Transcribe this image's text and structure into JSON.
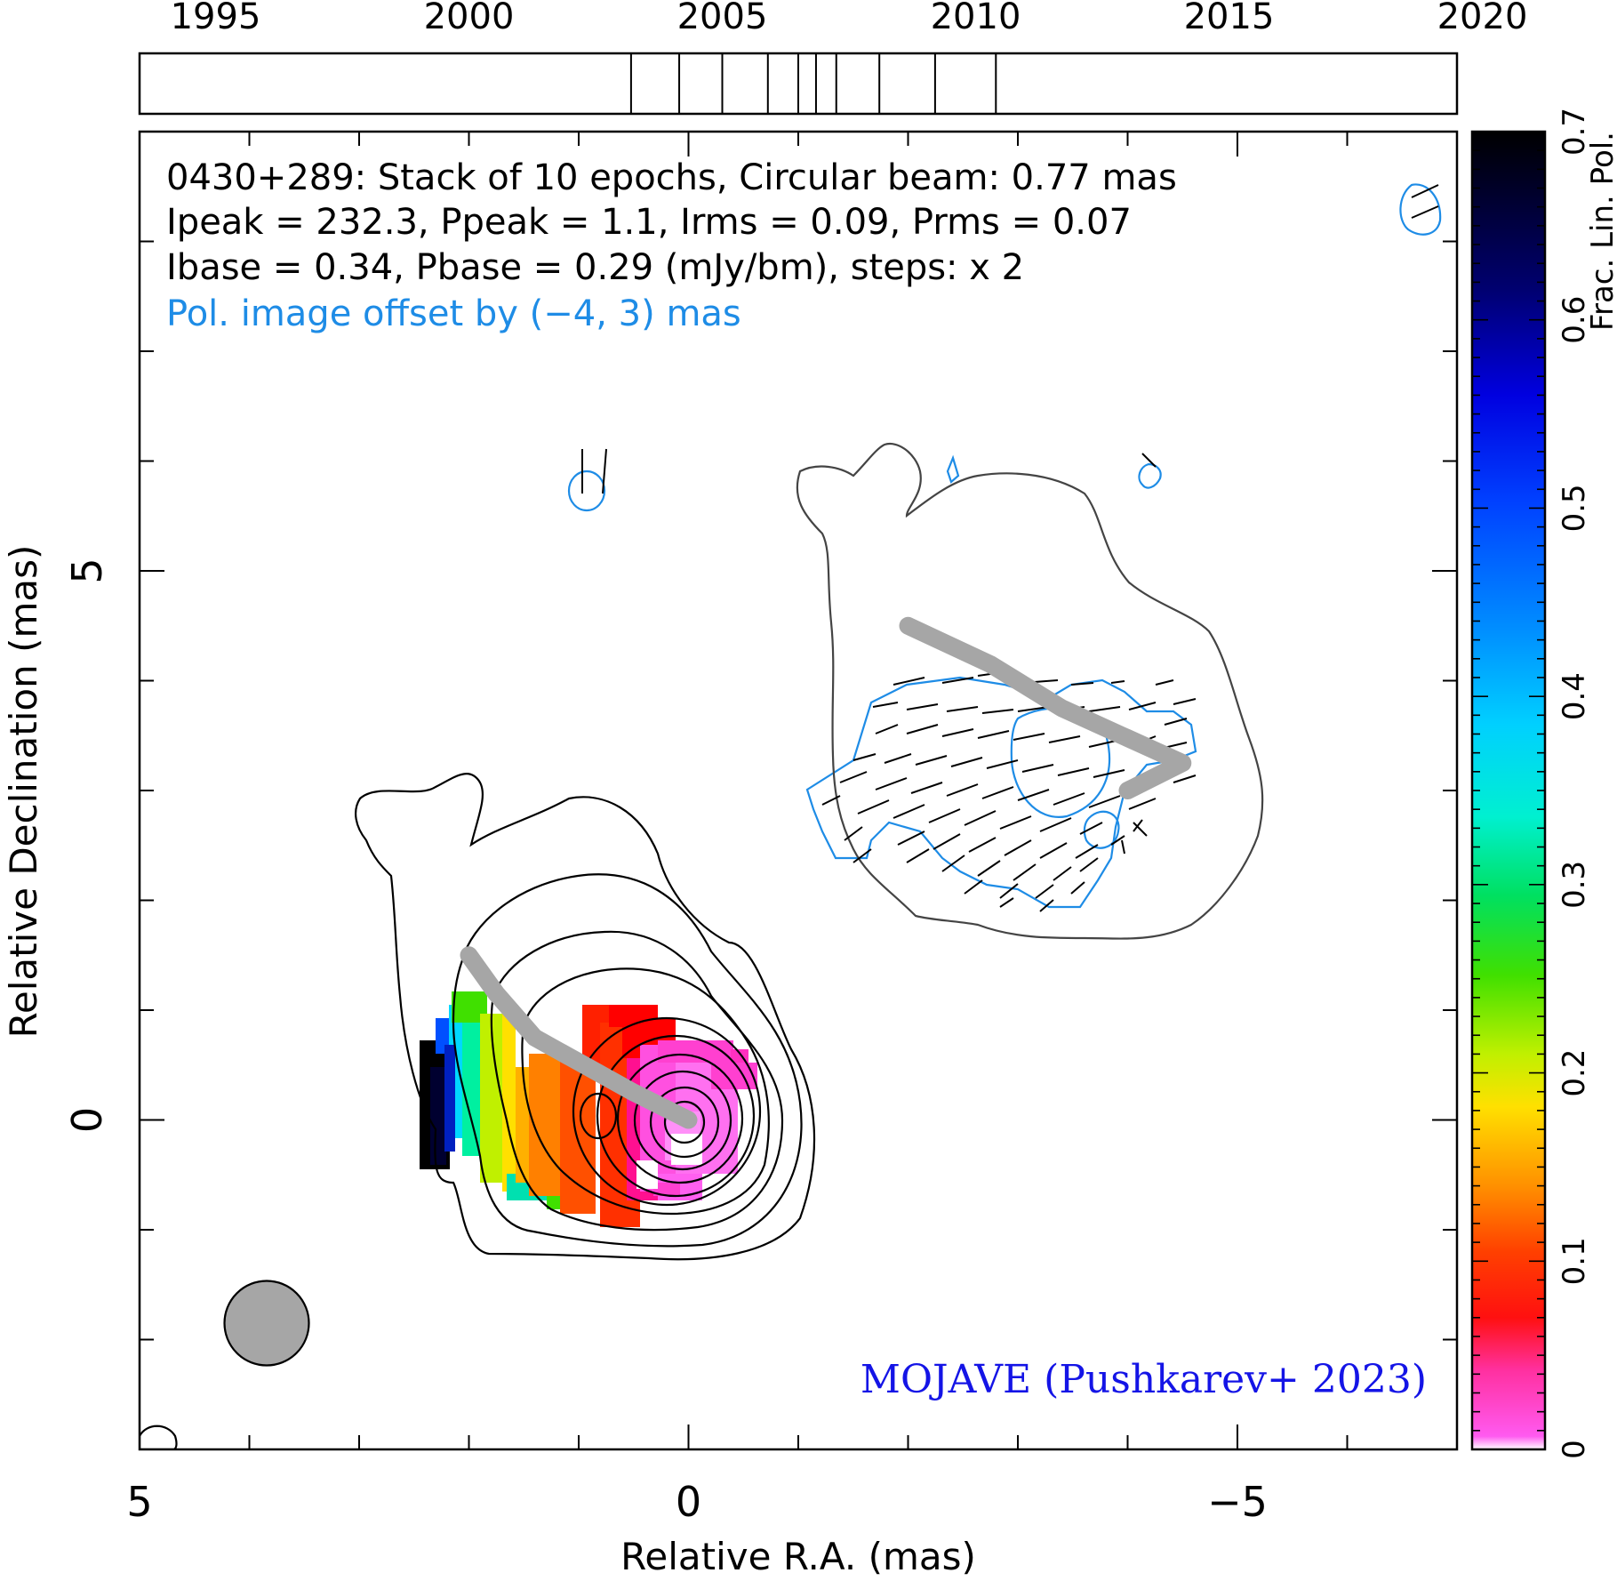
{
  "chart_data": {
    "type": "contour",
    "source": "0430+289",
    "header": {
      "line1": "0430+289: Stack of 10 epochs, Circular beam: 0.77 mas",
      "line2": "Ipeak = 232.3, Ppeak = 1.1, Irms = 0.09, Prms = 0.07",
      "line3": "Ibase = 0.34, Pbase = 0.29 (mJy/bm), steps: x 2",
      "line4": "Pol. image offset by (−4, 3) mas"
    },
    "credit": "MOJAVE (Pushkarev+ 2023)",
    "xlabel": "Relative R.A. (mas)",
    "ylabel": "Relative Declination (mas)",
    "xlim": [
      5,
      -7
    ],
    "ylim": [
      -3,
      9
    ],
    "x_ticks": [
      5,
      0,
      -5
    ],
    "x_tick_labels": [
      "5",
      "0",
      "−5"
    ],
    "y_ticks": [
      0,
      5
    ],
    "y_tick_labels": [
      "0",
      "5"
    ],
    "epoch_axis": {
      "range": [
        1993.5,
        2019.5
      ],
      "tick_labels": [
        "1995",
        "2000",
        "2005",
        "2010",
        "2015",
        "2020"
      ],
      "tick_values": [
        1995,
        2000,
        2005,
        2010,
        2015,
        2020
      ],
      "epochs": [
        2003.2,
        2004.15,
        2005.0,
        2005.9,
        2006.5,
        2006.85,
        2007.25,
        2008.1,
        2009.2,
        2010.4
      ]
    },
    "colorbar": {
      "label": "Frac. Lin. Pol.",
      "range": [
        0,
        0.7
      ],
      "tick_values": [
        0,
        0.1,
        0.2,
        0.3,
        0.4,
        0.5,
        0.6,
        0.7
      ],
      "tick_labels": [
        "0",
        "0.1",
        "0.2",
        "0.3",
        "0.4",
        "0.5",
        "0.6",
        "0.7"
      ]
    },
    "beam_diameter_mas": 0.77,
    "pol_offset_mas": [
      -4,
      3
    ],
    "ridgeline": [
      [
        2.0,
        1.5
      ],
      [
        1.75,
        1.15
      ],
      [
        1.4,
        0.75
      ],
      [
        0.95,
        0.5
      ],
      [
        0.5,
        0.25
      ],
      [
        0.0,
        0.0
      ]
    ],
    "ridgeline_pol": [
      [
        -2.0,
        4.5
      ],
      [
        -2.75,
        4.15
      ],
      [
        -3.4,
        3.75
      ],
      [
        -3.95,
        3.5
      ],
      [
        -4.5,
        3.25
      ],
      [
        -4.0,
        3.0
      ]
    ],
    "colors": {
      "contour": "#000000",
      "pol_contour": "#1e8ce6",
      "ridgeline": "#a6a6a6",
      "beam_fill": "#a6a6a6",
      "credit": "#1414e6",
      "header_blue": "#1e8ce6"
    }
  }
}
